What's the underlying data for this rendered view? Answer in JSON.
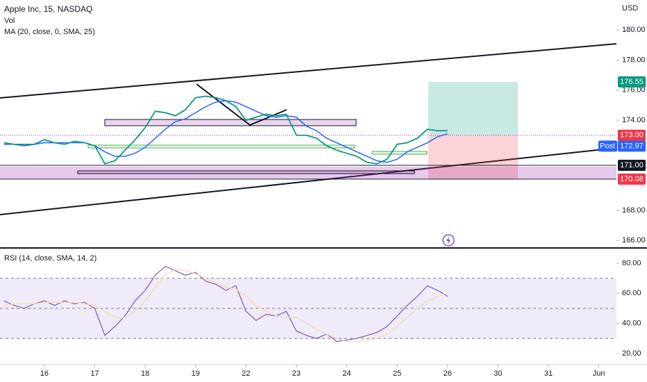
{
  "chart_data": [
    {
      "type": "line",
      "title": "Apple Inc, 15, NASDAQ",
      "annotations": [
        "Vol"
      ],
      "y_unit": "USD",
      "x": [
        -0.8,
        -0.6,
        -0.4,
        -0.2,
        0,
        0.2,
        0.4,
        0.6,
        0.8,
        1,
        1.2,
        1.4,
        1.6,
        1.8,
        2,
        2.2,
        2.4,
        2.6,
        2.8,
        3,
        3.2,
        3.4,
        3.6,
        3.8,
        4,
        4.2,
        4.4,
        4.6,
        4.8,
        5,
        5.2,
        5.4,
        5.6,
        5.8,
        6,
        6.2,
        6.4,
        6.6,
        6.8,
        7,
        7.2,
        7.4,
        7.6,
        7.8,
        8
      ],
      "values": [
        172.5,
        172.4,
        172.3,
        172.4,
        172.7,
        172.5,
        172.4,
        172.6,
        172.5,
        172.3,
        171.1,
        171.3,
        172.0,
        172.7,
        173.5,
        174.6,
        174.5,
        174.3,
        174.7,
        175.5,
        175.6,
        175.5,
        175.3,
        174.9,
        174.0,
        174.2,
        174.4,
        174.3,
        174.4,
        173.0,
        173.0,
        172.8,
        172.3,
        172.0,
        171.8,
        171.6,
        171.2,
        171.1,
        171.4,
        172.4,
        172.5,
        172.8,
        173.4,
        173.3,
        173.3
      ],
      "color": "#089981",
      "series": [
        {
          "name": "MA (20, close, 0, SMA, 25)",
          "color": "#2962ff",
          "values": [
            172.4,
            172.4,
            172.4,
            172.4,
            172.5,
            172.5,
            172.5,
            172.5,
            172.5,
            172.3,
            171.9,
            171.6,
            171.6,
            171.8,
            172.2,
            172.8,
            173.4,
            173.9,
            174.1,
            174.5,
            174.9,
            175.2,
            175.3,
            175.2,
            174.9,
            174.6,
            174.3,
            174.2,
            174.3,
            174.2,
            173.6,
            173.3,
            172.8,
            172.5,
            172.2,
            171.9,
            171.6,
            171.3,
            171.2,
            171.4,
            171.9,
            172.2,
            172.5,
            172.9,
            173.1
          ]
        }
      ],
      "xlim": [
        -0.88,
        11.35
      ],
      "ylim": [
        165.5,
        182
      ],
      "yticks": [
        {
          "value": 180,
          "label": "180.00"
        },
        {
          "value": 178,
          "label": "178.00"
        },
        {
          "value": 176,
          "label": "176.00"
        },
        {
          "value": 174,
          "label": "174.00"
        },
        {
          "value": 168,
          "label": "168.00"
        },
        {
          "value": 166,
          "label": "166.00"
        }
      ],
      "price_tags": [
        {
          "value": 176.55,
          "label": "176.55",
          "color": "#089981"
        },
        {
          "value": 173,
          "label": "173.00",
          "color": "#f23645"
        },
        {
          "name": "Post",
          "value": 172.97,
          "label": "172.97",
          "color": "#2962ff"
        },
        {
          "value": 171,
          "label": "171.00",
          "color": "#131722"
        },
        {
          "value": 170.08,
          "label": "170.08",
          "color": "#f23645"
        }
      ]
    },
    {
      "type": "line",
      "title": "RSI (14, close, SMA, 14, 2)",
      "values": [
        55,
        52,
        50,
        53,
        55,
        52,
        55,
        53,
        54,
        50,
        32,
        38,
        45,
        55,
        62,
        72,
        78,
        75,
        72,
        74,
        68,
        66,
        62,
        65,
        48,
        42,
        46,
        45,
        48,
        35,
        32,
        30,
        33,
        28,
        29,
        30,
        32,
        34,
        38,
        45,
        52,
        58,
        65,
        62,
        58
      ],
      "color": "#7e57c2",
      "ma_values": [
        52,
        53,
        53,
        53,
        54,
        54,
        54,
        54,
        53,
        52,
        48,
        44,
        44,
        48,
        55,
        64,
        72,
        76,
        75,
        73,
        70,
        67,
        64,
        63,
        58,
        52,
        48,
        45,
        44,
        44,
        40,
        36,
        33,
        30,
        28,
        28,
        29,
        30,
        33,
        38,
        44,
        50,
        55,
        58,
        60
      ],
      "ma_color": "#f5deb3",
      "ylim": [
        12.6,
        89.7
      ],
      "levels": [
        70,
        50,
        30
      ],
      "yticks": [
        {
          "value": 80,
          "label": "80.00"
        },
        {
          "value": 60,
          "label": "60.00"
        },
        {
          "value": 40,
          "label": "40.00"
        },
        {
          "value": 20,
          "label": "20.00"
        }
      ],
      "xticks": [
        {
          "value": 0,
          "label": "16"
        },
        {
          "value": 1,
          "label": "17"
        },
        {
          "value": 2,
          "label": "18"
        },
        {
          "value": 3,
          "label": "19"
        },
        {
          "value": 4,
          "label": "22"
        },
        {
          "value": 5,
          "label": "23"
        },
        {
          "value": 6,
          "label": "24"
        },
        {
          "value": 7,
          "label": "25"
        },
        {
          "value": 8,
          "label": "26"
        },
        {
          "value": 9,
          "label": "30"
        },
        {
          "value": 10,
          "label": "31"
        },
        {
          "value": 11,
          "label": "Jun"
        }
      ]
    }
  ]
}
